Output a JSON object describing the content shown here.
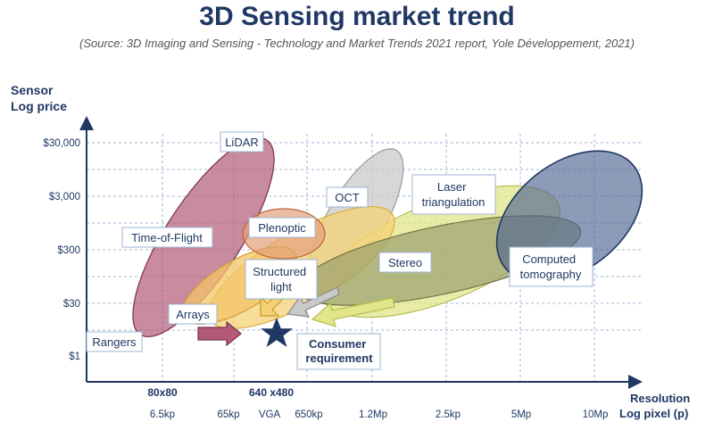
{
  "title": "3D Sensing market trend",
  "subtitle": "(Source: 3D Imaging and Sensing - Technology and Market Trends 2021 report, Yole Développement, 2021)",
  "colors": {
    "title": "#1f3864",
    "axis": "#1f3864",
    "grid": "#9db4d6",
    "lidar": "#b25a78",
    "plenoptic": "#e3a07a",
    "oct": "#c9c9c9",
    "laser_triangulation": "#e2e68a",
    "computed_tomography": "#4f6691",
    "stereo": "#9aa06e",
    "structured_light": "#f5d277",
    "arrays": "#f3c467",
    "star": "#1f3864"
  },
  "chart_data": {
    "type": "scatter",
    "ylabel": [
      "Sensor",
      "Log price"
    ],
    "xlabel": [
      "Resolution",
      "Log pixel (p)"
    ],
    "y_ticks": [
      "$30,000",
      "$3,000",
      "$300",
      "$30",
      "$1"
    ],
    "x_ticks_top": [
      "80x80",
      "640 x480"
    ],
    "x_ticks": [
      "6.5kp",
      "65kp",
      "VGA",
      "650kp",
      "1.2Mp",
      "2.5kp",
      "5Mp",
      "10Mp"
    ],
    "technologies": [
      "LiDAR",
      "Time-of-Flight",
      "Plenoptic",
      "OCT",
      "Laser triangulation",
      "Computed tomography",
      "Stereo",
      "Structured light",
      "Arrays",
      "Rangers"
    ],
    "consumer_requirement": "Consumer requirement"
  }
}
